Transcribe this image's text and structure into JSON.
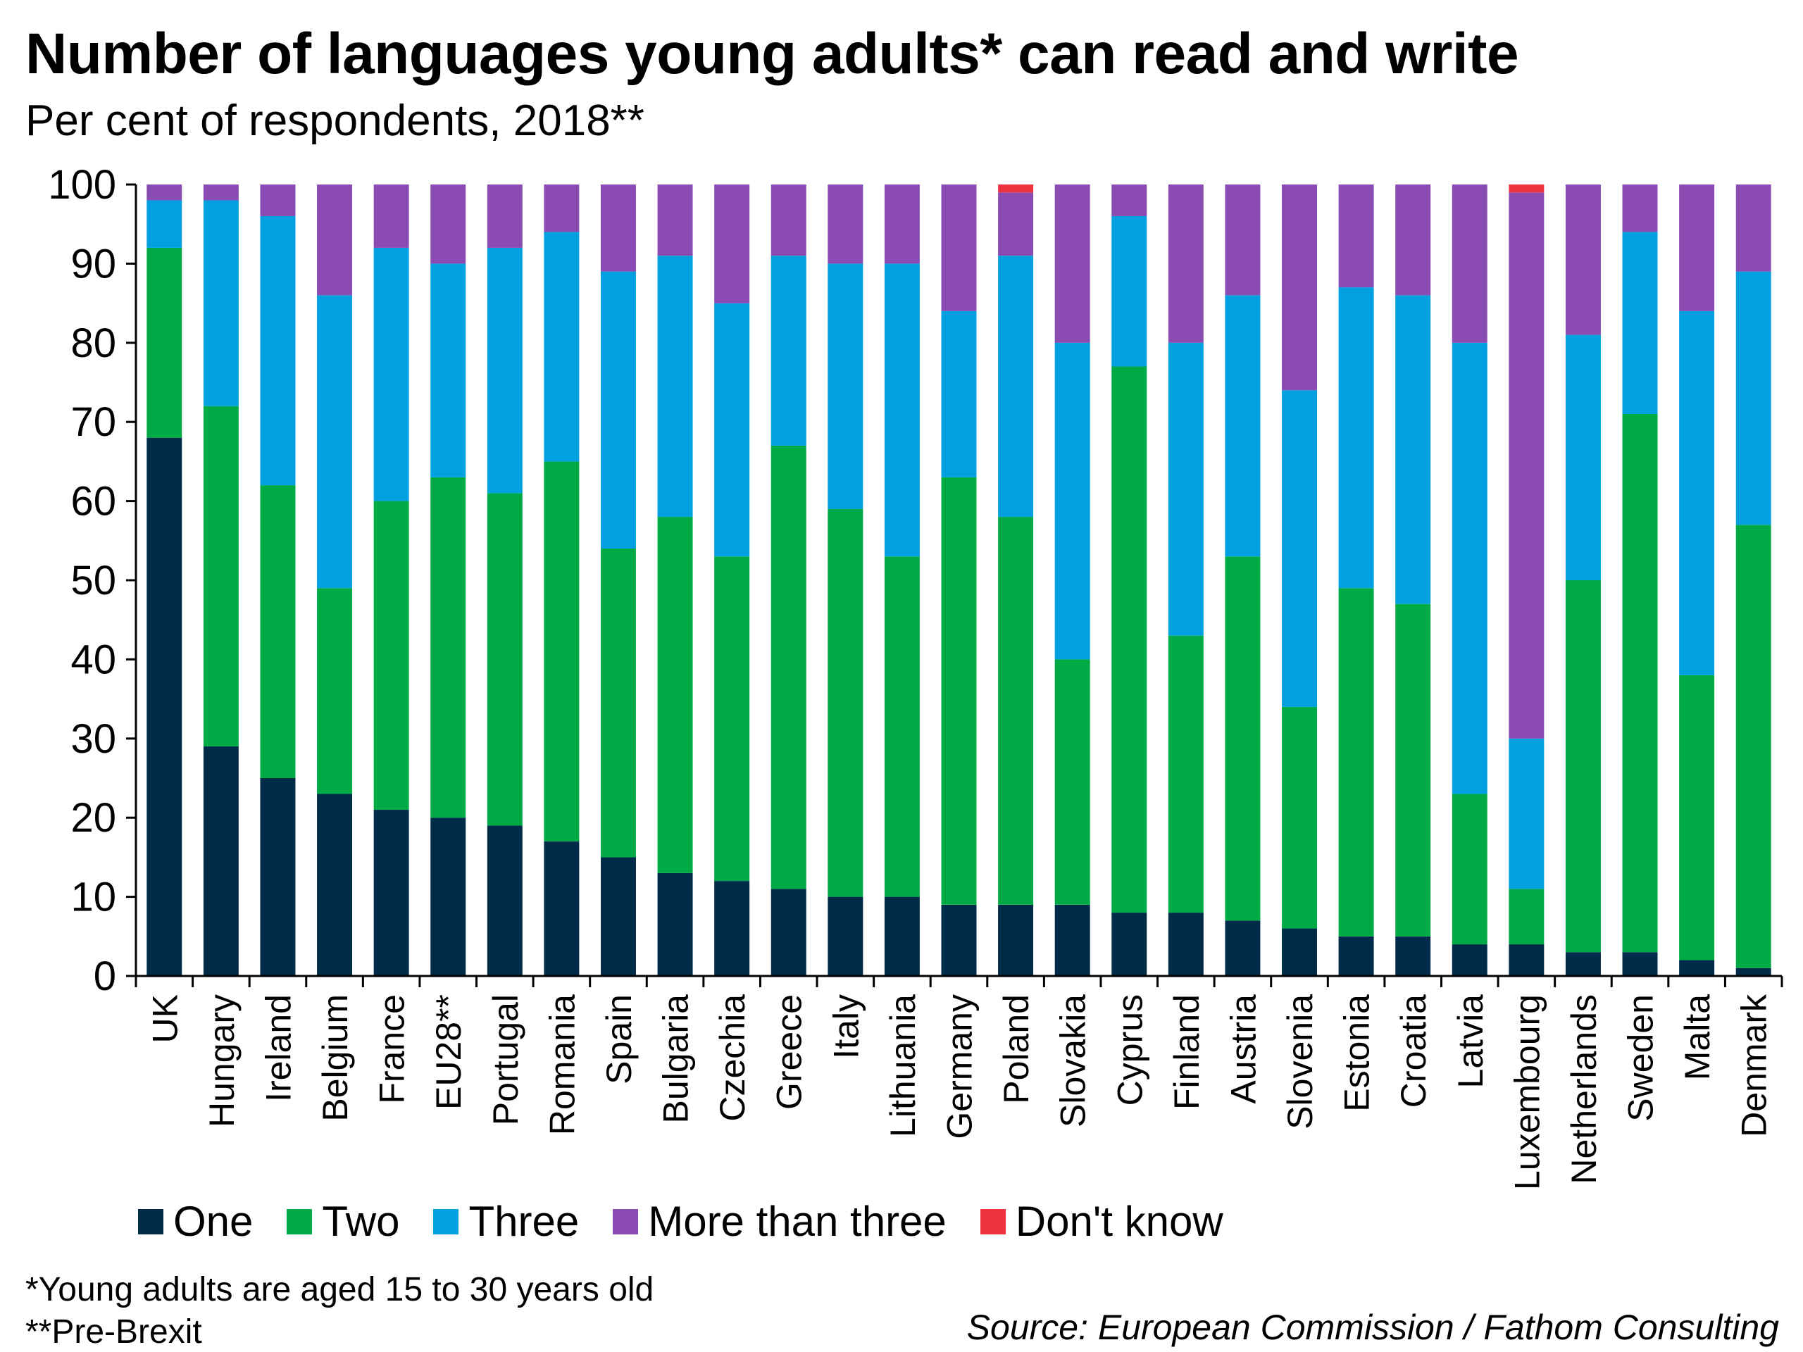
{
  "chart_data": {
    "type": "bar",
    "stacked": true,
    "title": "Number of languages young adults* can read and write",
    "subtitle": "Per cent of respondents, 2018**",
    "ylim": [
      0,
      100
    ],
    "yticks": [
      0,
      10,
      20,
      30,
      40,
      50,
      60,
      70,
      80,
      90,
      100
    ],
    "grid": false,
    "legend_position": "bottom",
    "categories": [
      "UK",
      "Hungary",
      "Ireland",
      "Belgium",
      "France",
      "EU28**",
      "Portugal",
      "Romania",
      "Spain",
      "Bulgaria",
      "Czechia",
      "Greece",
      "Italy",
      "Lithuania",
      "Germany",
      "Poland",
      "Slovakia",
      "Cyprus",
      "Finland",
      "Austria",
      "Slovenia",
      "Estonia",
      "Croatia",
      "Latvia",
      "Luxembourg",
      "Netherlands",
      "Sweden",
      "Malta",
      "Denmark"
    ],
    "series": [
      {
        "name": "One",
        "color": "#002b49",
        "values": [
          68,
          29,
          25,
          23,
          21,
          20,
          19,
          17,
          15,
          13,
          12,
          11,
          10,
          10,
          9,
          9,
          9,
          8,
          8,
          7,
          6,
          5,
          5,
          4,
          4,
          3,
          3,
          2,
          1
        ]
      },
      {
        "name": "Two",
        "color": "#00ab46",
        "values": [
          24,
          43,
          37,
          26,
          39,
          43,
          42,
          48,
          39,
          45,
          41,
          56,
          49,
          43,
          54,
          49,
          31,
          69,
          35,
          46,
          28,
          44,
          42,
          19,
          7,
          47,
          68,
          36,
          56
        ]
      },
      {
        "name": "Three",
        "color": "#00a0e1",
        "values": [
          6,
          26,
          34,
          37,
          32,
          27,
          31,
          29,
          35,
          33,
          32,
          24,
          31,
          37,
          21,
          33,
          40,
          19,
          37,
          33,
          40,
          38,
          39,
          57,
          19,
          31,
          23,
          46,
          32
        ]
      },
      {
        "name": "More than three",
        "color": "#8a4bb2",
        "values": [
          2,
          2,
          4,
          14,
          8,
          10,
          8,
          6,
          11,
          9,
          15,
          9,
          10,
          10,
          16,
          8,
          20,
          4,
          20,
          14,
          26,
          13,
          14,
          20,
          69,
          19,
          6,
          16,
          11
        ]
      },
      {
        "name": "Don't know",
        "color": "#ef3340",
        "values": [
          0,
          0,
          0,
          0,
          0,
          0,
          0,
          0,
          0,
          0,
          0,
          0,
          0,
          0,
          0,
          1,
          0,
          0,
          0,
          0,
          0,
          0,
          0,
          0,
          1,
          0,
          0,
          0,
          0
        ]
      }
    ]
  },
  "footnotes": {
    "line1": "*Young adults are aged 15 to 30 years old",
    "line2": "**Pre-Brexit",
    "source": "Source: European Commission / Fathom Consulting"
  }
}
